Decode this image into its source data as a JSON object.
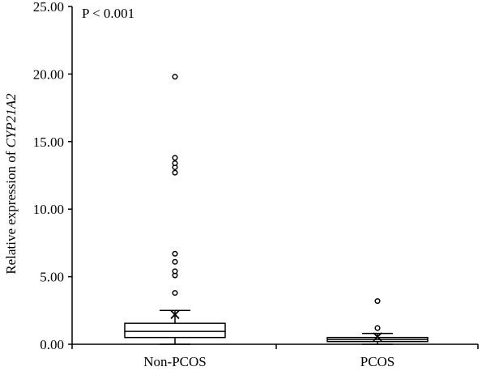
{
  "chart_data": {
    "type": "box",
    "annotation": "P < 0.001",
    "ylabel_prefix": "Relative expression of ",
    "ylabel_gene": "CYP21A2",
    "ylim": [
      0,
      25
    ],
    "yticks": [
      "0.00",
      "5.00",
      "10.00",
      "15.00",
      "20.00",
      "25.00"
    ],
    "categories": [
      "Non-PCOS",
      "PCOS"
    ],
    "groups": [
      {
        "label": "Non-PCOS",
        "whisker_low": 0.0,
        "q1": 0.5,
        "median": 0.95,
        "q3": 1.55,
        "whisker_high": 2.5,
        "mean": 2.2,
        "outliers": [
          3.8,
          5.1,
          5.4,
          6.1,
          6.7,
          12.7,
          13.1,
          13.4,
          13.8,
          19.8
        ]
      },
      {
        "label": "PCOS",
        "whisker_low": 0.0,
        "q1": 0.2,
        "median": 0.35,
        "q3": 0.5,
        "whisker_high": 0.8,
        "mean": 0.55,
        "outliers": [
          1.2,
          3.2
        ]
      }
    ],
    "grid": false,
    "legend": "none"
  }
}
